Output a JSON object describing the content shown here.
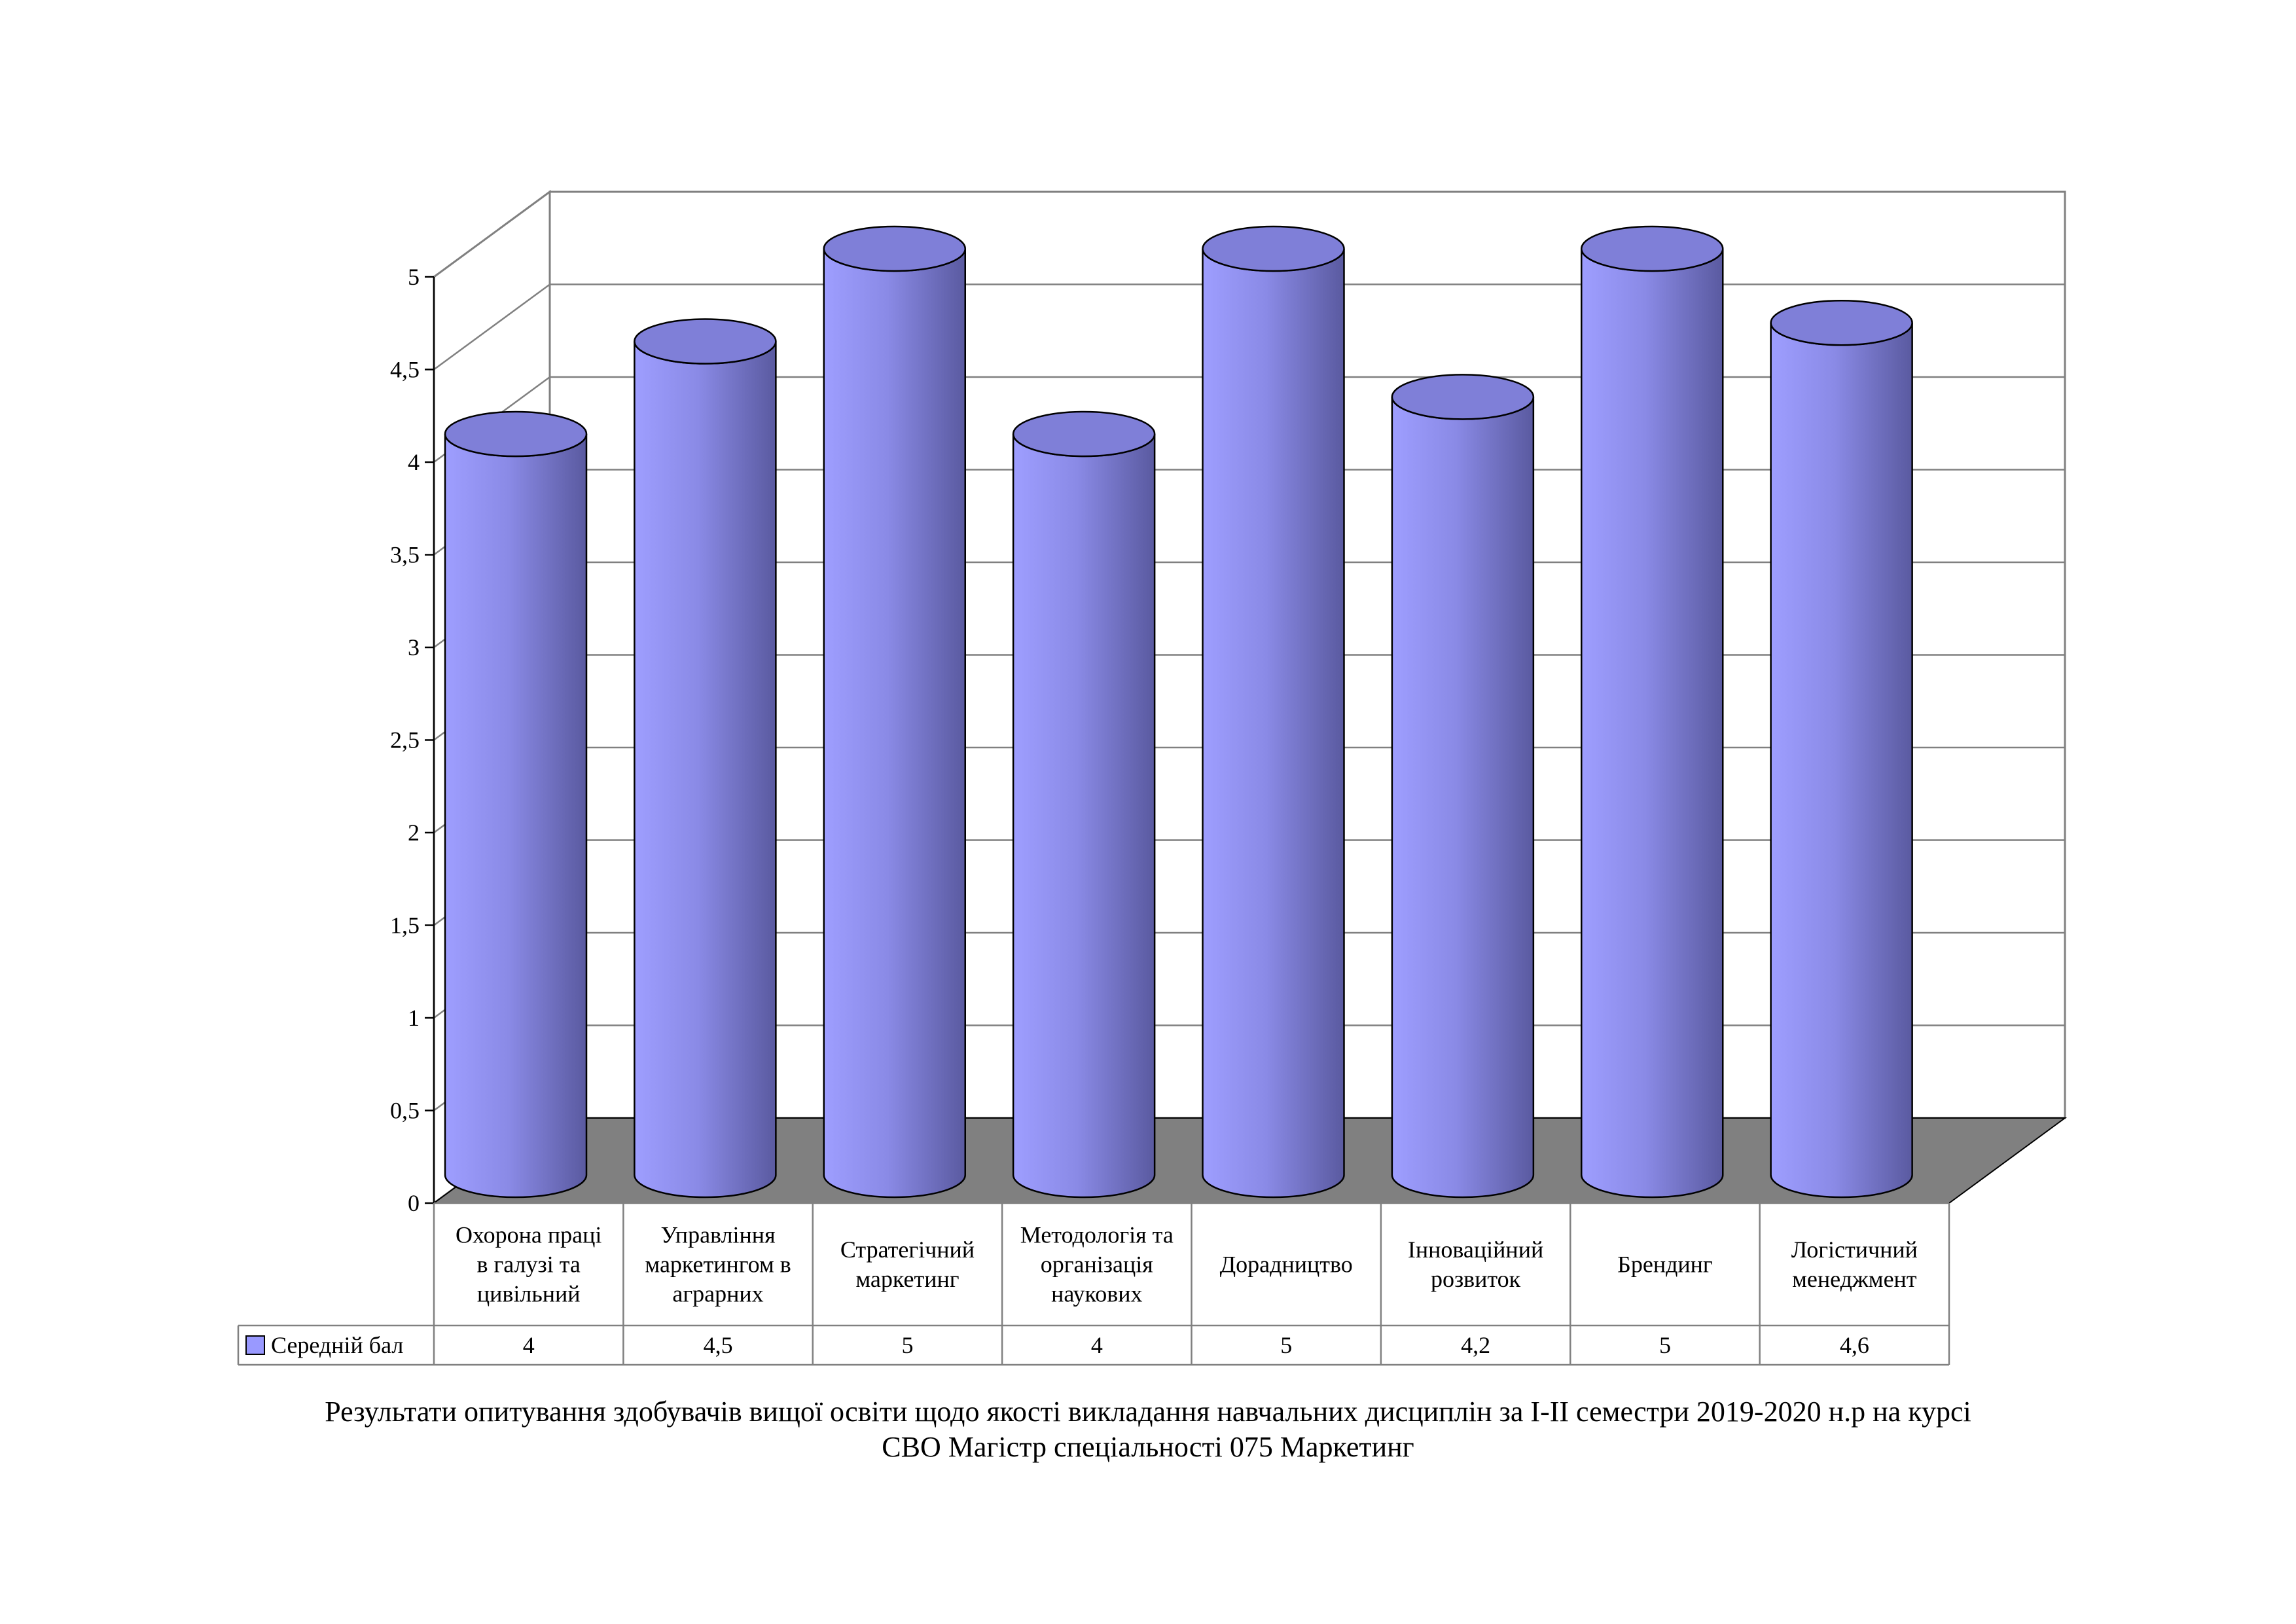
{
  "chart_data": {
    "type": "bar",
    "style": "3d-cylinder",
    "categories": [
      [
        "Охорона праці",
        "в галузі та",
        "цивільний"
      ],
      [
        "Управління",
        "маркетингом в",
        "аграрних"
      ],
      [
        "Стратегічний",
        "маркетинг"
      ],
      [
        "Методологія та",
        "організація",
        "наукових"
      ],
      [
        "Дорадництво"
      ],
      [
        "Інноваційний",
        "розвиток"
      ],
      [
        "Брендинг"
      ],
      [
        "Логістичний",
        "менеджмент"
      ]
    ],
    "series": [
      {
        "name": "Середній бал",
        "values": [
          4,
          4.5,
          5,
          4,
          5,
          4.2,
          5,
          4.6
        ],
        "labels": [
          "4",
          "4,5",
          "5",
          "4",
          "5",
          "4,2",
          "5",
          "4,6"
        ],
        "color": "#9999ff"
      }
    ],
    "ylim": [
      0,
      5
    ],
    "yticks": [
      "0",
      "0,5",
      "1",
      "1,5",
      "2",
      "2,5",
      "3",
      "3,5",
      "4",
      "4,5",
      "5"
    ],
    "grid": true,
    "legend": "data-table-left",
    "floor_color": "#808080"
  },
  "caption": {
    "line1": "Результати опитування здобувачів вищої освіти щодо якості викладання навчальних дисциплін за І-ІІ семестри 2019-2020 н.р на курсі",
    "line2": "СВО Магістр спеціальності 075 Маркетинг"
  }
}
